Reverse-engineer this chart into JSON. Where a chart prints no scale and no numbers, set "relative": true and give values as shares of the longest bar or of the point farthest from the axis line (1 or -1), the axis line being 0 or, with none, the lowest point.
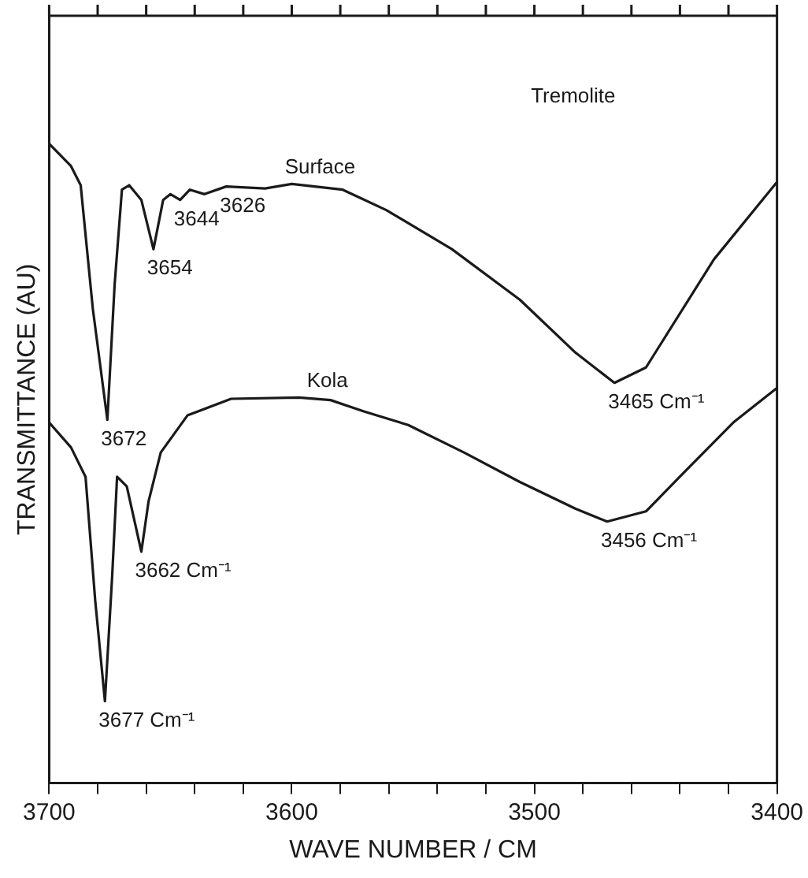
{
  "chart_data": {
    "type": "line",
    "relative": true,
    "xlabel": "WAVE NUMBER / CM",
    "ylabel": "TRANSMITTANCE (AU)",
    "xlim": [
      3700,
      3400
    ],
    "xticks": [
      3700,
      {
        "value": 3680,
        "label": null
      },
      {
        "value": 3660,
        "label": null
      },
      {
        "value": 3640,
        "label": null
      },
      {
        "value": 3620,
        "label": null
      },
      3600,
      {
        "value": 3580,
        "label": null
      },
      {
        "value": 3560,
        "label": null
      },
      {
        "value": 3540,
        "label": null
      },
      {
        "value": 3520,
        "label": null
      },
      3500,
      {
        "value": 3480,
        "label": null
      },
      {
        "value": 3460,
        "label": null
      },
      {
        "value": 3440,
        "label": null
      },
      {
        "value": 3420,
        "label": null
      },
      3400
    ],
    "tick_labels": "x",
    "grid": false,
    "legend": false,
    "marker": "none",
    "line_style": "solid",
    "series": [
      {
        "name": "Surface",
        "color": "#1a1a1a",
        "x": [
          3700,
          3691,
          3687,
          3682,
          3676,
          3673,
          3670,
          3667,
          3662,
          3657,
          3653,
          3650,
          3646,
          3642,
          3636,
          3627,
          3611,
          3600,
          3579,
          3561,
          3534,
          3506,
          3483,
          3467,
          3454,
          3426,
          3400
        ],
        "values": [
          1.0,
          0.965,
          0.935,
          0.742,
          0.568,
          0.78,
          0.928,
          0.935,
          0.912,
          0.835,
          0.912,
          0.921,
          0.912,
          0.928,
          0.921,
          0.933,
          0.93,
          0.937,
          0.928,
          0.896,
          0.835,
          0.756,
          0.673,
          0.626,
          0.65,
          0.819,
          0.94
        ]
      },
      {
        "name": "Kola",
        "color": "#1a1a1a",
        "x": [
          3700,
          3691,
          3685,
          3681,
          3677,
          3674,
          3672,
          3668,
          3662,
          3659,
          3654,
          3643,
          3625,
          3597,
          3584,
          3570,
          3552,
          3529,
          3506,
          3483,
          3470,
          3454,
          3438,
          3418,
          3400
        ],
        "values": [
          0.564,
          0.525,
          0.479,
          0.285,
          0.128,
          0.325,
          0.479,
          0.464,
          0.362,
          0.441,
          0.517,
          0.575,
          0.601,
          0.603,
          0.599,
          0.581,
          0.56,
          0.517,
          0.471,
          0.429,
          0.409,
          0.425,
          0.487,
          0.564,
          0.618
        ]
      }
    ],
    "annotations": [
      "Tremolite",
      {
        "text": "3672",
        "x": 3676,
        "y": 0.568
      },
      {
        "text": "3654",
        "x": 3657,
        "y": 0.835
      },
      {
        "text": "3644",
        "x": 3646,
        "y": 0.912
      },
      {
        "text": "3626",
        "x": 3627,
        "y": 0.933
      },
      {
        "text": "3465 Cm⁻¹",
        "x": 3467,
        "y": 0.626
      },
      {
        "text": "3662 Cm⁻¹",
        "x": 3662,
        "y": 0.362
      },
      {
        "text": "3677 Cm⁻¹",
        "x": 3677,
        "y": 0.128
      },
      {
        "text": "3456 Cm⁻¹",
        "x": 3470,
        "y": 0.409
      }
    ]
  }
}
